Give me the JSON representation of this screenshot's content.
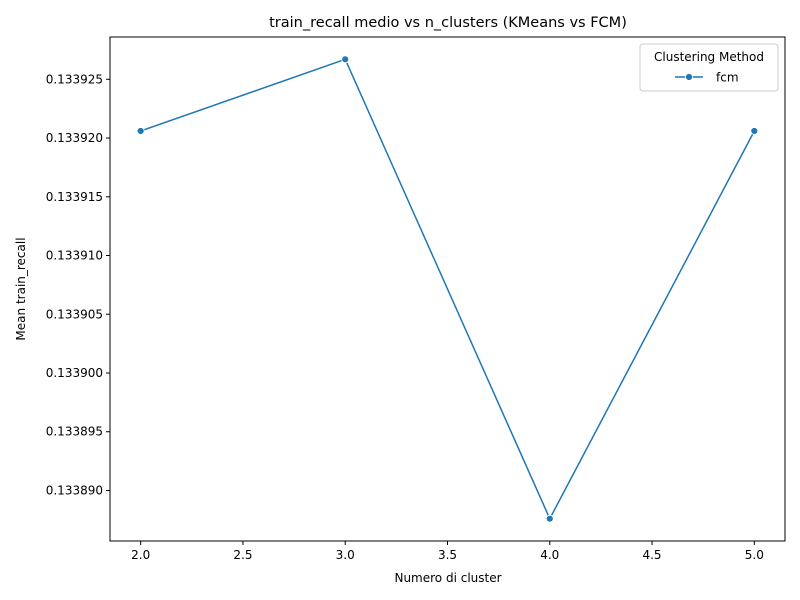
{
  "chart_data": {
    "type": "line",
    "title": "train_recall medio vs n_clusters (KMeans vs FCM)",
    "xlabel": "Numero di cluster",
    "ylabel": "Mean train_recall",
    "x": [
      2,
      3,
      4,
      5
    ],
    "series": [
      {
        "name": "fcm",
        "values": [
          0.1339206,
          0.1339267,
          0.1338876,
          0.1339206
        ],
        "color": "#1f77b4"
      }
    ],
    "xlim": [
      1.85,
      5.15
    ],
    "ylim": [
      0.1338857,
      0.1339286
    ],
    "xticks": [
      2.0,
      2.5,
      3.0,
      3.5,
      4.0,
      4.5,
      5.0
    ],
    "xtick_labels": [
      "2.0",
      "2.5",
      "3.0",
      "3.5",
      "4.0",
      "4.5",
      "5.0"
    ],
    "yticks": [
      0.13389,
      0.133895,
      0.1339,
      0.133905,
      0.13391,
      0.133915,
      0.13392,
      0.133925
    ],
    "ytick_labels": [
      "0.133890",
      "0.133895",
      "0.133900",
      "0.133905",
      "0.133910",
      "0.133915",
      "0.133920",
      "0.133925"
    ],
    "grid": false,
    "legend": {
      "title": "Clustering Method",
      "placement": "top-right"
    }
  }
}
